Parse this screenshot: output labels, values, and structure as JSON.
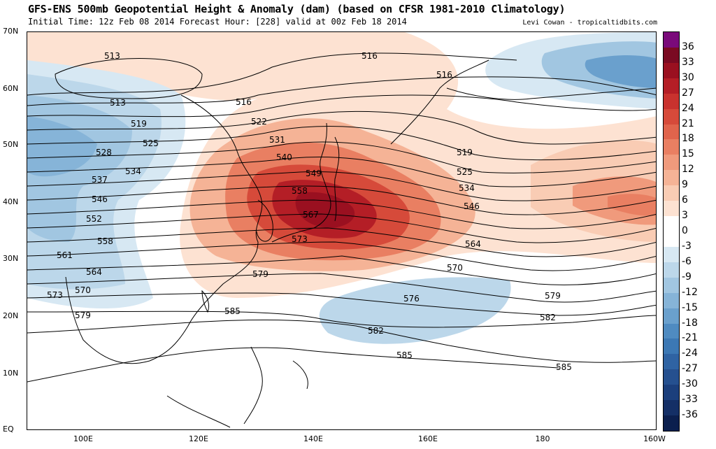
{
  "header": {
    "title": "GFS-ENS 500mb Geopotential Height & Anomaly (dam) (based on CFSR 1981-2010 Climatology)",
    "subtitle": "Initial Time: 12z Feb 08 2014 Forecast Hour: [228] valid at 00z Feb 18 2014",
    "credit": "Levi Cowan - tropicaltidbits.com"
  },
  "map": {
    "lat_labels": [
      "70N",
      "60N",
      "50N",
      "40N",
      "30N",
      "20N",
      "10N",
      "EQ"
    ],
    "lon_labels": [
      "100E",
      "120E",
      "140E",
      "160E",
      "180",
      "160W"
    ],
    "contour_labels": [
      "513",
      "513",
      "519",
      "516",
      "516",
      "516",
      "522",
      "519",
      "525",
      "528",
      "531",
      "540",
      "534",
      "549",
      "537",
      "558",
      "546",
      "552",
      "567",
      "558",
      "573",
      "561",
      "564",
      "564",
      "570",
      "579",
      "579",
      "573",
      "570",
      "576",
      "582",
      "579",
      "585",
      "582",
      "585",
      "585",
      "525",
      "534",
      "546"
    ]
  },
  "colorbar": {
    "ticks": [
      "36",
      "33",
      "30",
      "27",
      "24",
      "21",
      "18",
      "15",
      "12",
      "9",
      "6",
      "3",
      "0",
      "-3",
      "-6",
      "-9",
      "-12",
      "-15",
      "-18",
      "-21",
      "-24",
      "-27",
      "-30",
      "-33",
      "-36"
    ],
    "colors": [
      "#7a0a7a",
      "#7a0a22",
      "#9a1020",
      "#b41e26",
      "#c9322e",
      "#d64a3a",
      "#e0644c",
      "#e97f62",
      "#f09a7c",
      "#f5b396",
      "#f9ccb4",
      "#fde2d2",
      "#ffffff",
      "#ffffff",
      "#d7e8f3",
      "#bcd7ea",
      "#a1c6e1",
      "#86b4d8",
      "#6aa0cd",
      "#4f8bc1",
      "#3c78b4",
      "#2f63a3",
      "#25508f",
      "#1b3f7c",
      "#142f66",
      "#0b1f4e"
    ]
  }
}
